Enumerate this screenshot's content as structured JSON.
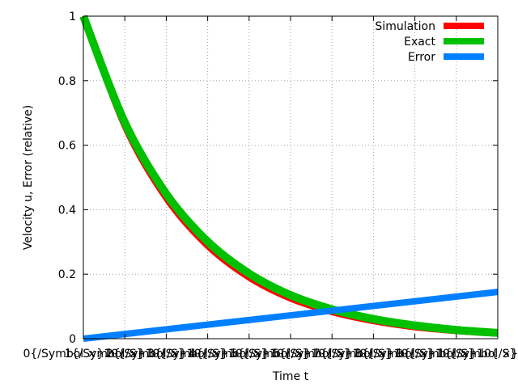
{
  "chart_data": {
    "type": "line",
    "xlabel": "Time t",
    "ylabel": "Velocity u, Error (relative)",
    "xlim": [
      0,
      4
    ],
    "ylim": [
      0,
      1
    ],
    "grid": true,
    "legend_position": "top-right",
    "x_tick_labels": [
      "0{/Symbol ×}10{/S}",
      "1{/Symbol ×}10{/S}",
      "2{/Symbol ×}10{/S}",
      "3{/Symbol ×}10{/S}",
      "4{/Symbol ×}10{/S}",
      "5{/Symbol ×}10{/S}",
      "6{/Symbol ×}10{/S}",
      "7{/Symbol ×}10{/S}",
      "8{/Symbol ×}10{/S}",
      "9{/Symbol ×}10{/S}",
      "1{/Symbol ×}10{/S}"
    ],
    "y_ticks": [
      0,
      0.2,
      0.4,
      0.6,
      0.8,
      1
    ],
    "y_tick_labels": [
      "0",
      "0.2",
      "0.4",
      "0.6",
      "0.8",
      "1"
    ],
    "series": [
      {
        "name": "Simulation",
        "color": "#ff0000",
        "x": [
          0,
          0.4,
          0.8,
          1.2,
          1.6,
          2.0,
          2.4,
          2.8,
          3.2,
          3.6,
          4.0
        ],
        "values": [
          1.0,
          0.66,
          0.436,
          0.288,
          0.19,
          0.125,
          0.083,
          0.055,
          0.036,
          0.024,
          0.016
        ]
      },
      {
        "name": "Exact",
        "color": "#00c000",
        "x": [
          0,
          0.4,
          0.8,
          1.2,
          1.6,
          2.0,
          2.4,
          2.8,
          3.2,
          3.6,
          4.0
        ],
        "values": [
          1.0,
          0.67,
          0.449,
          0.301,
          0.202,
          0.135,
          0.091,
          0.061,
          0.041,
          0.027,
          0.018
        ]
      },
      {
        "name": "Error",
        "color": "#0080ff",
        "x": [
          0,
          4.0
        ],
        "values": [
          0.0,
          0.145
        ]
      }
    ]
  }
}
